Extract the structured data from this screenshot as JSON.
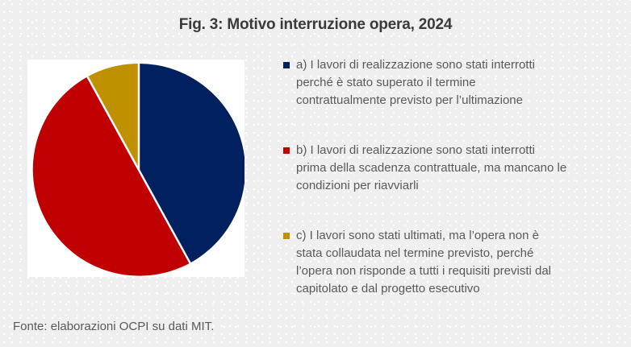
{
  "title": "Fig. 3: Motivo interruzione opera, 2024",
  "source_note": "Fonte: elaborazioni OCPI su dati MIT.",
  "colors": {
    "background": "#efefef",
    "panel": "#ffffff",
    "title_text": "#3a3a3a",
    "body_text": "#595959",
    "slice_a": "#002060",
    "slice_b": "#c00000",
    "slice_c": "#bf9000"
  },
  "chart_data": {
    "type": "pie",
    "title": "Fig. 3: Motivo interruzione opera, 2024",
    "start_angle_deg": -90,
    "direction": "clockwise",
    "legend_position": "right",
    "slices": [
      {
        "id": "a",
        "label": "a) I lavori di realizzazione sono stati interrotti perché è stato superato il termine contrattualmente previsto per l’ultimazione",
        "value_pct": 42,
        "color": "#002060"
      },
      {
        "id": "b",
        "label": "b) I lavori di realizzazione sono stati interrotti prima della scadenza contrattuale, ma mancano le condizioni per riavviarli",
        "value_pct": 50,
        "color": "#c00000"
      },
      {
        "id": "c",
        "label": "c) I lavori sono stati ultimati, ma l’opera non è stata collaudata nel termine previsto, perché l’opera non risponde a tutti i requisiti previsti dal capitolato e dal progetto esecutivo",
        "value_pct": 8,
        "color": "#bf9000"
      }
    ]
  },
  "legend": {
    "items": [
      {
        "id": "a",
        "marker_color": "#002060",
        "lines": [
          "a) I lavori di realizzazione sono stati interrotti",
          "perché è stato superato il termine",
          "contrattualmente previsto per l’ultimazione"
        ]
      },
      {
        "id": "b",
        "marker_color": "#c00000",
        "lines": [
          "b) I lavori di realizzazione sono stati interrotti",
          "prima della scadenza contrattuale, ma mancano le",
          "condizioni per riavviarli"
        ]
      },
      {
        "id": "c",
        "marker_color": "#bf9000",
        "lines": [
          "c) I lavori sono stati ultimati, ma l’opera non è",
          "stata collaudata nel termine previsto, perché",
          "l’opera non risponde a tutti i requisiti previsti dal",
          "capitolato e dal progetto esecutivo"
        ]
      }
    ]
  }
}
